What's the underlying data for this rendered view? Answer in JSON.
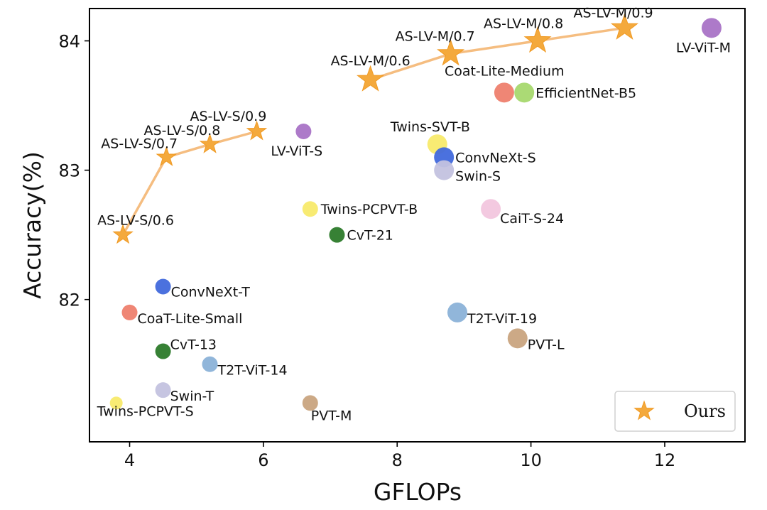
{
  "chart_data": {
    "type": "scatter",
    "xlabel": "GFLOPs",
    "ylabel": "Accuracy(%)",
    "xlim": [
      3.4,
      13.2
    ],
    "ylim": [
      80.9,
      84.25
    ],
    "xticks": [
      4,
      6,
      8,
      10,
      12
    ],
    "yticks": [
      82,
      83,
      84
    ],
    "grid": false,
    "legend": {
      "position": "bottom-right",
      "entries": [
        {
          "label": "Ours",
          "marker": "star",
          "color": "#f4a93c"
        }
      ]
    },
    "series": [
      {
        "name": "Ours",
        "marker": "star",
        "connected": true,
        "color": "#f4a93c",
        "line_color": "#f5bd80",
        "groups": [
          [
            {
              "label": "AS-LV-S/0.6",
              "x": 3.9,
              "y": 82.5
            },
            {
              "label": "AS-LV-S/0.7",
              "x": 4.55,
              "y": 83.1
            },
            {
              "label": "AS-LV-S/0.8",
              "x": 5.2,
              "y": 83.2
            },
            {
              "label": "AS-LV-S/0.9",
              "x": 5.9,
              "y": 83.3
            }
          ],
          [
            {
              "label": "AS-LV-M/0.6",
              "x": 7.6,
              "y": 83.7
            },
            {
              "label": "AS-LV-M/0.7",
              "x": 8.8,
              "y": 83.9
            },
            {
              "label": "AS-LV-M/0.8",
              "x": 10.1,
              "y": 84.0
            },
            {
              "label": "AS-LV-M/0.9",
              "x": 11.4,
              "y": 84.1
            }
          ]
        ]
      }
    ],
    "models": [
      {
        "label": "LV-ViT-M",
        "x": 12.7,
        "y": 84.1,
        "color": "#a973c6",
        "size": "large"
      },
      {
        "label": "Coat-Lite-Medium",
        "x": 9.6,
        "y": 83.6,
        "color": "#ee7f6e",
        "size": "large"
      },
      {
        "label": "EfficientNet-B5",
        "x": 9.9,
        "y": 83.6,
        "color": "#a7d86e",
        "size": "large"
      },
      {
        "label": "LV-ViT-S",
        "x": 6.6,
        "y": 83.3,
        "color": "#a973c6",
        "size": "small"
      },
      {
        "label": "Twins-SVT-B",
        "x": 8.6,
        "y": 83.2,
        "color": "#f8ea6c",
        "size": "large"
      },
      {
        "label": "ConvNeXt-S",
        "x": 8.7,
        "y": 83.1,
        "color": "#4169dc",
        "size": "large"
      },
      {
        "label": "Swin-S",
        "x": 8.7,
        "y": 83.0,
        "color": "#c3c2df",
        "size": "large"
      },
      {
        "label": "Twins-PCPVT-B",
        "x": 6.7,
        "y": 82.7,
        "color": "#f8ea6c",
        "size": "small"
      },
      {
        "label": "CaiT-S-24",
        "x": 9.4,
        "y": 82.7,
        "color": "#f2c6de",
        "size": "large"
      },
      {
        "label": "CvT-21",
        "x": 7.1,
        "y": 82.5,
        "color": "#2c7a2a",
        "size": "small"
      },
      {
        "label": "ConvNeXt-T",
        "x": 4.5,
        "y": 82.1,
        "color": "#4169dc",
        "size": "small"
      },
      {
        "label": "CoaT-Lite-Small",
        "x": 4.0,
        "y": 81.9,
        "color": "#ee7f6e",
        "size": "small"
      },
      {
        "label": "T2T-ViT-19",
        "x": 8.9,
        "y": 81.9,
        "color": "#8bb2d8",
        "size": "large"
      },
      {
        "label": "CvT-13",
        "x": 4.5,
        "y": 81.6,
        "color": "#2c7a2a",
        "size": "small"
      },
      {
        "label": "PVT-L",
        "x": 9.8,
        "y": 81.7,
        "color": "#c9a47f",
        "size": "large"
      },
      {
        "label": "T2T-ViT-14",
        "x": 5.2,
        "y": 81.5,
        "color": "#8bb2d8",
        "size": "small"
      },
      {
        "label": "Swin-T",
        "x": 4.5,
        "y": 81.3,
        "color": "#c3c2df",
        "size": "small"
      },
      {
        "label": "Twins-PCPVT-S",
        "x": 3.8,
        "y": 81.2,
        "color": "#f8ea6c",
        "size": "tiny"
      },
      {
        "label": "PVT-M",
        "x": 6.7,
        "y": 81.2,
        "color": "#c9a47f",
        "size": "small"
      }
    ]
  }
}
